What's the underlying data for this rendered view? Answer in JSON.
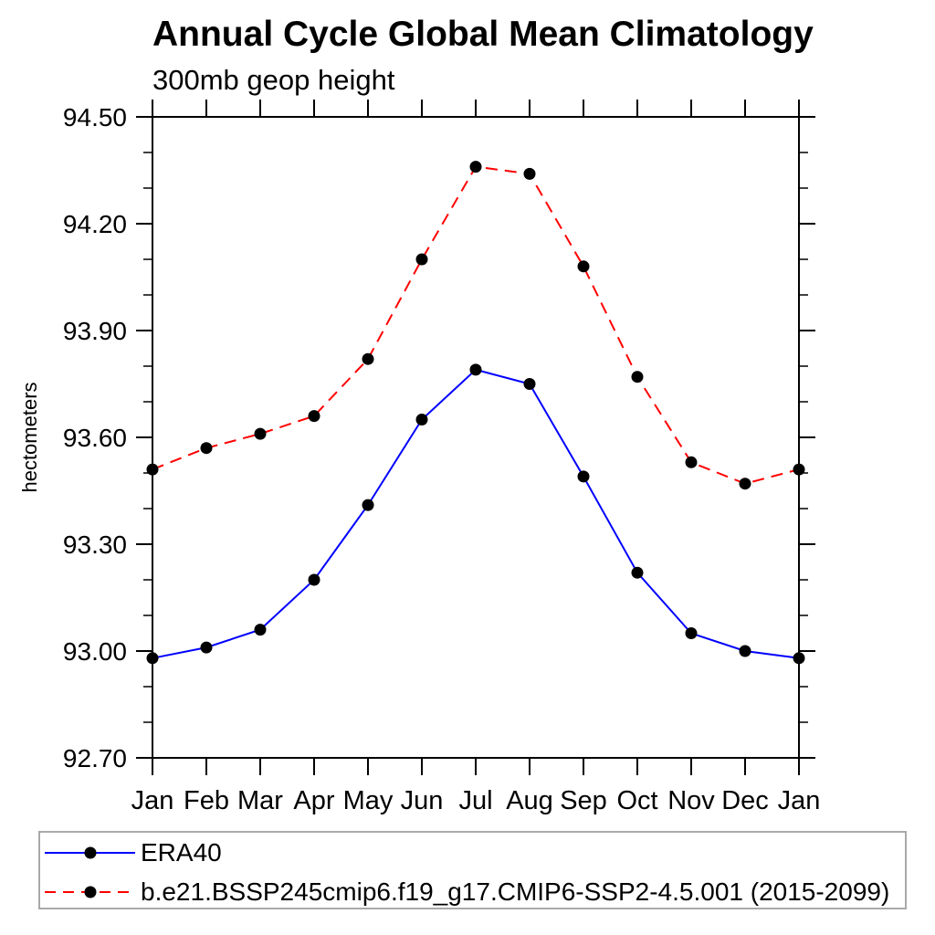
{
  "chart_data": {
    "type": "line",
    "title": "Annual Cycle Global Mean Climatology",
    "subtitle": "300mb geop height",
    "ylabel": "hectometers",
    "xlabel": "",
    "categories": [
      "Jan",
      "Feb",
      "Mar",
      "Apr",
      "May",
      "Jun",
      "Jul",
      "Aug",
      "Sep",
      "Oct",
      "Nov",
      "Dec",
      "Jan"
    ],
    "ylim": [
      92.7,
      94.5
    ],
    "y_major_step": 0.3,
    "y_minor_step": 0.1,
    "y_tick_format_decimals": 2,
    "grid": false,
    "legend_position": "bottom",
    "axis_color": "#000000",
    "marker_color": "#000000",
    "series": [
      {
        "name": "ERA40",
        "color": "#0000ff",
        "line_style": "solid",
        "marker": "filled-circle",
        "values": [
          92.98,
          93.01,
          93.06,
          93.2,
          93.41,
          93.65,
          93.79,
          93.75,
          93.49,
          93.22,
          93.05,
          93.0,
          92.98
        ]
      },
      {
        "name": "b.e21.BSSP245cmip6.f19_g17.CMIP6-SSP2-4.5.001 (2015-2099)",
        "color": "#ff0000",
        "line_style": "dashed",
        "marker": "filled-circle",
        "values": [
          93.51,
          93.57,
          93.61,
          93.66,
          93.82,
          94.1,
          94.36,
          94.34,
          94.08,
          93.77,
          93.53,
          93.47,
          93.51
        ]
      }
    ]
  }
}
